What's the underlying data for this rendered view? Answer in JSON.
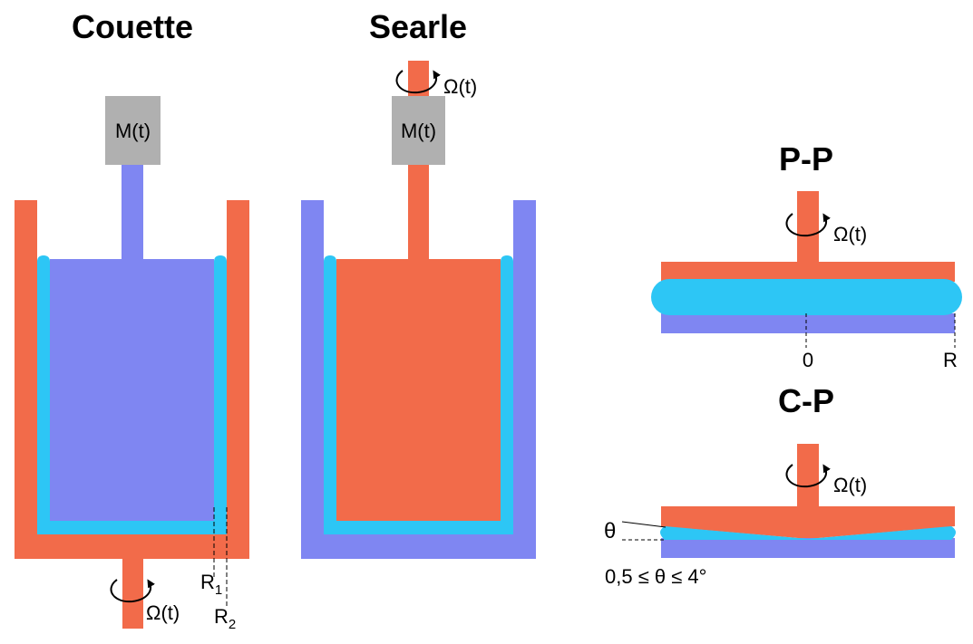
{
  "titles": {
    "couette": "Couette",
    "searle": "Searle",
    "pp": "P-P",
    "cp": "C-P"
  },
  "labels": {
    "torque": "M(t)",
    "omega": "Ω(t)",
    "r1_main": "R",
    "r1_sub": "1",
    "r2_main": "R",
    "r2_sub": "2",
    "pp_center": "0",
    "pp_radius": "R",
    "theta": "θ",
    "angle_range": "0,5 ≤ θ ≤ 4°"
  },
  "colors": {
    "rotor": "#F26B4A",
    "stator": "#7F86F2",
    "sample": "#2DC6F5",
    "torque_box": "#B0B0B0",
    "background": "#FFFFFF"
  }
}
